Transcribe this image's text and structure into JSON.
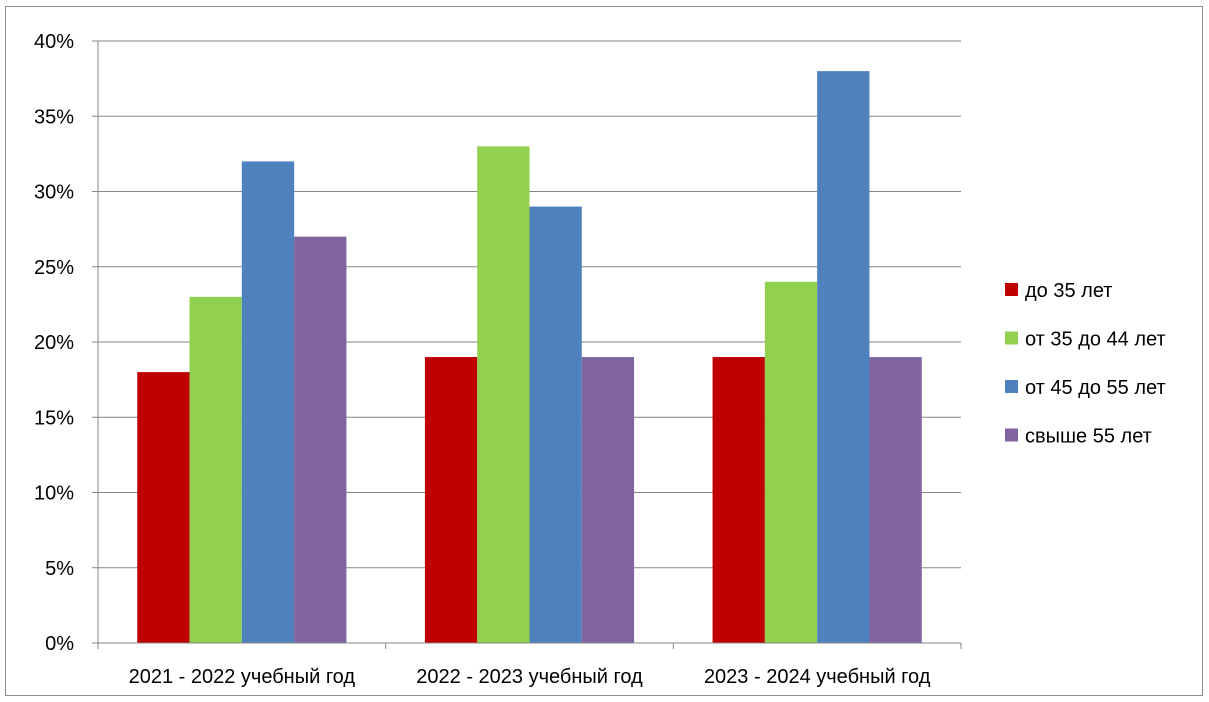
{
  "chart_data": {
    "type": "bar",
    "categories": [
      "2021 - 2022 учебный год",
      "2022 - 2023 учебный год",
      "2023 - 2024 учебный год"
    ],
    "series": [
      {
        "name": "до 35 лет",
        "values": [
          18,
          19,
          19
        ],
        "color": "#c00000"
      },
      {
        "name": "от 35 до 44 лет",
        "values": [
          23,
          33,
          24
        ],
        "color": "#92d050"
      },
      {
        "name": "от 45 до 55 лет",
        "values": [
          32,
          29,
          38
        ],
        "color": "#4f81bd"
      },
      {
        "name": "свыше 55 лет",
        "values": [
          27,
          19,
          19
        ],
        "color": "#8064a2"
      }
    ],
    "yticks": [
      "0%",
      "5%",
      "10%",
      "15%",
      "20%",
      "25%",
      "30%",
      "35%",
      "40%"
    ],
    "ylim": [
      0,
      40
    ],
    "grid": true,
    "legend_position": "right"
  }
}
